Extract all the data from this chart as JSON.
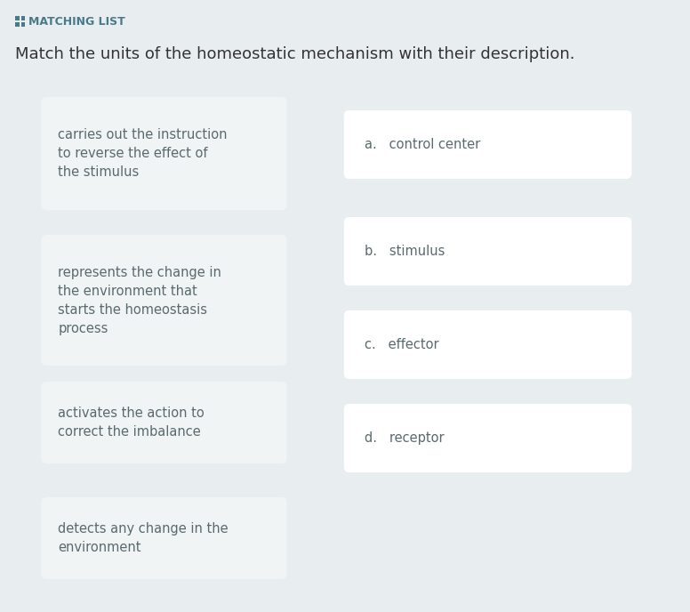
{
  "bg_color": "#e8eef0",
  "card_bg": "#ffffff",
  "card_bg_left": "#f0f4f5",
  "title_label": "MATCHING LIST",
  "subtitle": "Match the units of the homeostatic mechanism with their description.",
  "left_items": [
    "carries out the instruction\nto reverse the effect of\nthe stimulus",
    "represents the change in\nthe environment that\nstarts the homeostasis\nprocess",
    "activates the action to\ncorrect the imbalance",
    "detects any change in the\nenvironment"
  ],
  "right_items": [
    "a.   control center",
    "b.   stimulus",
    "c.   effector",
    "d.   receptor"
  ],
  "text_color": "#5a6a6e",
  "label_color": "#5a6a6e",
  "title_color": "#4a7a8a",
  "icon_color": "#4a7a8a",
  "subtitle_color": "#333333",
  "font_size_text": 10.5,
  "font_size_title": 9,
  "font_size_subtitle": 13
}
